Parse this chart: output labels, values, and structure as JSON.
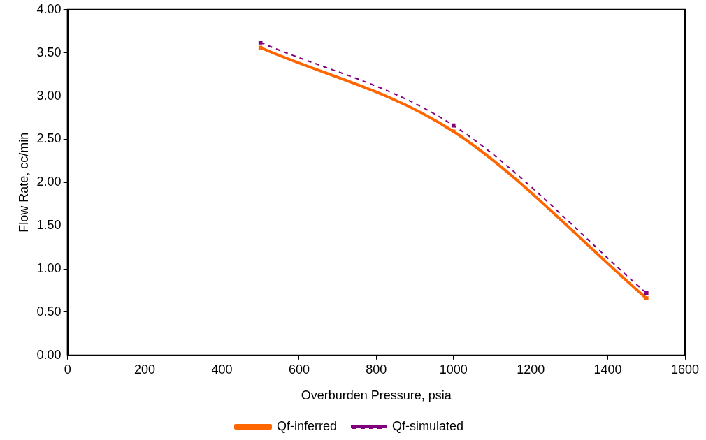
{
  "chart_data": {
    "type": "line",
    "xlabel": "Overburden Pressure, psia",
    "ylabel": "Flow Rate, cc/min",
    "x": [
      500,
      1000,
      1500
    ],
    "series": [
      {
        "name": "Qf-inferred",
        "color": "#ff6600",
        "values": [
          3.56,
          2.59,
          0.66
        ],
        "line_style": "solid"
      },
      {
        "name": "Qf-simulated",
        "color": "#800080",
        "values": [
          3.62,
          2.66,
          0.72
        ],
        "line_style": "dashed"
      }
    ],
    "xlim": [
      0,
      1600
    ],
    "xticks": [
      0,
      200,
      400,
      600,
      800,
      1000,
      1200,
      1400,
      1600
    ],
    "ylim": [
      0,
      4
    ],
    "yticks": [
      {
        "value": 0,
        "label": "0.00"
      },
      {
        "value": 0.5,
        "label": "0.50"
      },
      {
        "value": 1,
        "label": "1.00"
      },
      {
        "value": 1.5,
        "label": "1.50"
      },
      {
        "value": 2,
        "label": "2.00"
      },
      {
        "value": 2.5,
        "label": "2.50"
      },
      {
        "value": 3,
        "label": "3.00"
      },
      {
        "value": 3.5,
        "label": "3.50"
      },
      {
        "value": 4,
        "label": "4.00"
      }
    ],
    "grid": false,
    "legend": "bottom",
    "marker": "square"
  }
}
